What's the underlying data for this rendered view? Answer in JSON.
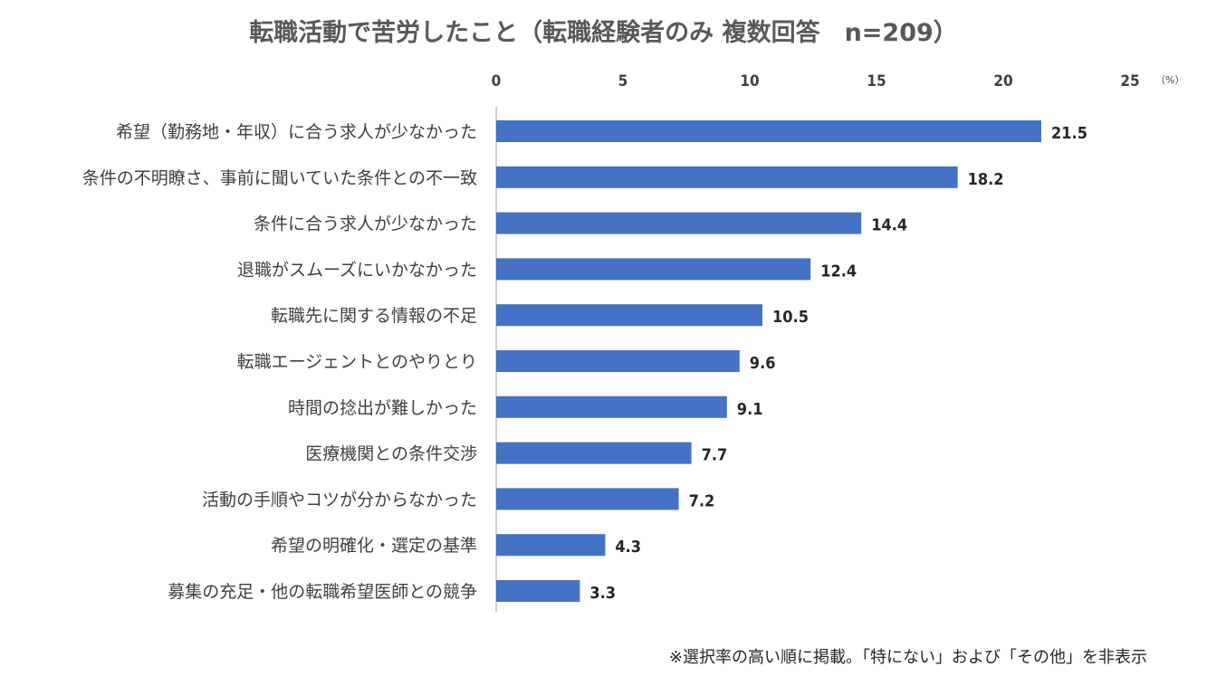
{
  "chart_data": {
    "type": "bar",
    "orientation": "horizontal",
    "title": "転職活動で苦労したこと（転職経験者のみ 複数回答　n=209）",
    "unit_label": "（%）",
    "xlim": [
      0,
      25
    ],
    "ticks": [
      "0",
      "5",
      "10",
      "15",
      "20",
      "25"
    ],
    "categories": [
      "希望（勤務地・年収）に合う求人が少なかった",
      "条件の不明瞭さ、事前に聞いていた条件との不一致",
      "条件に合う求人が少なかった",
      "退職がスムーズにいかなかった",
      "転職先に関する情報の不足",
      "転職エージェントとのやりとり",
      "時間の捻出が難しかった",
      "医療機関との条件交渉",
      "活動の手順やコツが分からなかった",
      "希望の明確化・選定の基準",
      "募集の充足・他の転職希望医師との競争"
    ],
    "values": [
      21.5,
      18.2,
      14.4,
      12.4,
      10.5,
      9.6,
      9.1,
      7.7,
      7.2,
      4.3,
      3.3
    ],
    "value_labels": [
      "21.5",
      "18.2",
      "14.4",
      "12.4",
      "10.5",
      "9.6",
      "9.1",
      "7.7",
      "7.2",
      "4.3",
      "3.3"
    ],
    "bar_color": "#4472C4",
    "axis_position": "top",
    "grid": false,
    "legend": "none",
    "note": "※選択率の高い順に掲載。「特にない」および「その他」を非表示"
  }
}
